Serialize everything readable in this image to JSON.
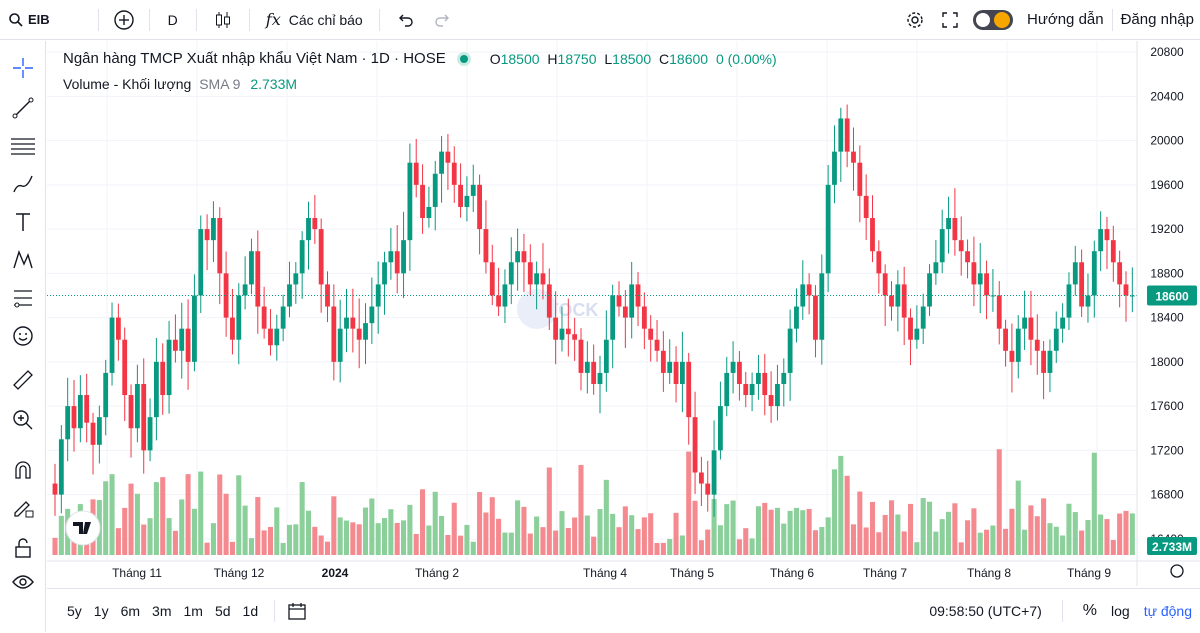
{
  "toolbar": {
    "symbol": "EIB",
    "interval": "D",
    "indicators_label": "Các chỉ báo",
    "guide_label": "Hướng dẫn",
    "login_label": "Đăng nhập"
  },
  "legend": {
    "title": "Ngân hàng TMCP Xuất nhập khẩu Việt Nam · 1D · HOSE",
    "open_label": "O",
    "open": "18500",
    "high_label": "H",
    "high": "18750",
    "low_label": "L",
    "low": "18500",
    "close_label": "C",
    "close": "18600",
    "change": "0 (0.00%)",
    "volume_label": "Volume - Khối lượng",
    "sma_label": "SMA 9",
    "volume_value": "2.733M"
  },
  "watermark": "STOCK",
  "price_axis": [
    "20800",
    "20400",
    "20000",
    "19600",
    "19200",
    "18800",
    "18400",
    "18000",
    "17600",
    "17200",
    "16800",
    "16400"
  ],
  "current_price": "18600",
  "volume_tag": "2.733M",
  "time_axis": [
    "Tháng 11",
    "Tháng 12",
    "2024",
    "Tháng 2",
    "Tháng 4",
    "Tháng 5",
    "Tháng 6",
    "Tháng 7",
    "Tháng 8",
    "Tháng 9"
  ],
  "bottom": {
    "ranges": [
      "5y",
      "1y",
      "6m",
      "3m",
      "1m",
      "5d",
      "1d"
    ],
    "clock": "09:58:50 (UTC+7)",
    "percent": "%",
    "log": "log",
    "auto": "tự động"
  },
  "colors": {
    "up": "#089981",
    "down": "#f23645",
    "up_vol": "#8bcf9a",
    "down_vol": "#f48a8f",
    "accent": "#2962ff"
  },
  "chart_data": {
    "type": "candlestick",
    "ylim": [
      16200,
      20900
    ],
    "closes": [
      16800,
      17300,
      17600,
      17400,
      17700,
      17450,
      17250,
      17500,
      17900,
      18400,
      18200,
      17700,
      17400,
      17800,
      17200,
      17500,
      18000,
      17700,
      18200,
      18100,
      18300,
      18000,
      18600,
      19200,
      19100,
      19300,
      18800,
      18400,
      18200,
      18600,
      18700,
      19000,
      18500,
      18300,
      18150,
      18300,
      18500,
      18700,
      18800,
      19100,
      19300,
      19200,
      18700,
      18500,
      18000,
      18300,
      18400,
      18300,
      18200,
      18350,
      18500,
      18700,
      18900,
      19000,
      18800,
      19100,
      19800,
      19600,
      19300,
      19400,
      19700,
      19900,
      19800,
      19600,
      19400,
      19500,
      19600,
      19200,
      18900,
      18600,
      18500,
      18700,
      18900,
      19000,
      18900,
      18700,
      18800,
      18700,
      18400,
      18200,
      18300,
      18250,
      18200,
      17900,
      18000,
      17800,
      17900,
      18200,
      18600,
      18500,
      18400,
      18700,
      18500,
      18300,
      18200,
      18100,
      17900,
      18000,
      17800,
      18000,
      17500,
      17000,
      16900,
      16800,
      17200,
      17600,
      17900,
      18000,
      17800,
      17700,
      17800,
      17900,
      17700,
      17600,
      17800,
      17900,
      18300,
      18500,
      18700,
      18600,
      18200,
      18800,
      19600,
      19900,
      20200,
      19900,
      19800,
      19500,
      19300,
      19000,
      18800,
      18600,
      18500,
      18700,
      18400,
      18200,
      18300,
      18500,
      18800,
      18900,
      19200,
      19300,
      19100,
      19000,
      18900,
      18700,
      18800,
      18600,
      18600,
      18300,
      18100,
      18000,
      18300,
      18400,
      18200,
      18100,
      17900,
      18100,
      18300,
      18400,
      18700,
      18900,
      18500,
      18600,
      19000,
      19200,
      19100,
      18900,
      18700,
      18600,
      18600
    ]
  }
}
